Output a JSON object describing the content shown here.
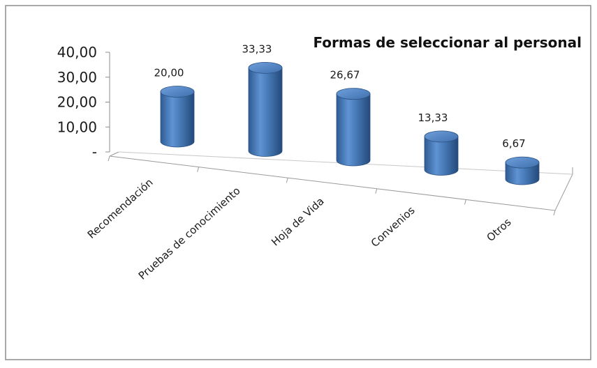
{
  "chart_data": {
    "type": "bar",
    "style": "3d-cylinder",
    "title": "Formas de seleccionar al personal",
    "categories": [
      "Recomendación",
      "Pruebas de conocimiento",
      "Hoja de Vida",
      "Convenios",
      "Otros"
    ],
    "values": [
      20.0,
      33.33,
      26.67,
      13.33,
      6.67
    ],
    "value_labels": [
      "20,00",
      "33,33",
      "26,67",
      "13,33",
      "6,67"
    ],
    "ylim": [
      0,
      40
    ],
    "yticks": [
      0,
      10,
      20,
      30,
      40
    ],
    "ytick_labels": [
      "-",
      "10,00",
      "20,00",
      "30,00",
      "40,00"
    ],
    "xlabel": "",
    "ylabel": "",
    "legend": "none",
    "grid": false,
    "bar_color": "#4A7EBB"
  }
}
